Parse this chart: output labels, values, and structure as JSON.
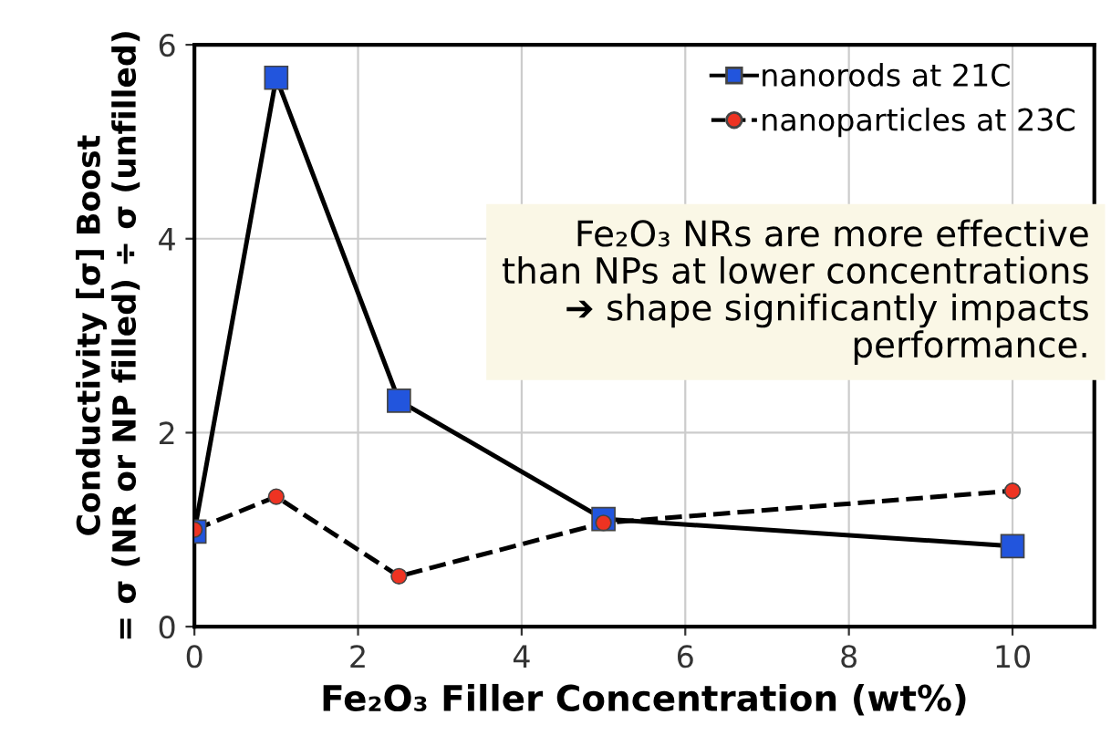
{
  "chart_data": {
    "type": "line",
    "xlabel": "Fe₂O₃ Filler Concentration (wt%)",
    "ylabel": "Conductivity [σ] Boost\n= σ (NR or NP filled) ÷ σ (unfilled)",
    "x": [
      0,
      1,
      2.5,
      5,
      10
    ],
    "series": [
      {
        "name": "nanorods at 21C",
        "color": "#2255dd",
        "values": [
          0.98,
          5.66,
          2.33,
          1.11,
          0.83
        ],
        "marker": "square",
        "line_style": "solid"
      },
      {
        "name": "nanoparticles at 23C",
        "color": "#ee3322",
        "values": [
          1.0,
          1.34,
          0.52,
          1.07,
          1.4
        ],
        "marker": "circle",
        "line_style": "dashed"
      }
    ],
    "xlim": [
      0,
      11
    ],
    "ylim": [
      0,
      6
    ],
    "xticks": [
      0,
      2,
      4,
      6,
      8,
      10
    ],
    "yticks": [
      0,
      2,
      4,
      6
    ],
    "grid": true,
    "legend": "top right",
    "annotations": [
      "Fe₂O₃ NRs are more effective\nthan NPs at lower concentrations\n➔ shape significantly impacts\nperformance."
    ]
  }
}
